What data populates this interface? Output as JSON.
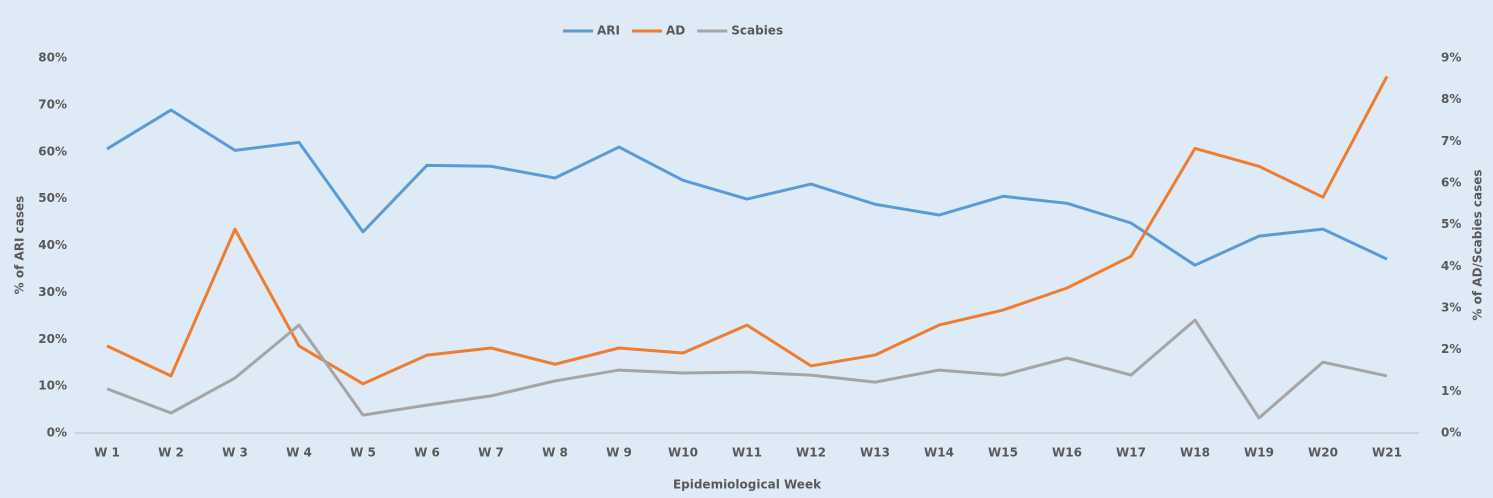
{
  "chart_data": {
    "type": "line",
    "categories": [
      "W 1",
      "W 2",
      "W 3",
      "W 4",
      "W 5",
      "W 6",
      "W 7",
      "W 8",
      "W 9",
      "W10",
      "W11",
      "W12",
      "W13",
      "W14",
      "W15",
      "W16",
      "W17",
      "W18",
      "W19",
      "W20",
      "W21"
    ],
    "series": [
      {
        "name": "ARI",
        "color": "#5b9bd5",
        "values": [
          60.6,
          68.9,
          60.3,
          62.0,
          42.9,
          57.1,
          56.9,
          54.4,
          61.0,
          53.9,
          49.9,
          53.1,
          48.8,
          46.5,
          50.5,
          49.0,
          44.8,
          35.8,
          42.0,
          43.5,
          37.1
        ]
      },
      {
        "name": "AD",
        "color": "#ed7d31",
        "axis": "y2",
        "values": [
          2.09,
          1.37,
          4.89,
          2.09,
          1.18,
          1.87,
          2.04,
          1.65,
          2.04,
          1.92,
          2.59,
          1.61,
          1.87,
          2.59,
          2.95,
          3.48,
          4.24,
          6.83,
          6.4,
          5.66,
          8.56
        ]
      },
      {
        "name": "Scabies",
        "color": "#a5a5a5",
        "axis": "y2",
        "values": [
          1.06,
          0.48,
          1.32,
          2.59,
          0.43,
          0.67,
          0.89,
          1.25,
          1.51,
          1.44,
          1.46,
          1.39,
          1.22,
          1.51,
          1.39,
          1.8,
          1.39,
          2.71,
          0.36,
          1.7,
          1.37
        ]
      }
    ],
    "xlabel": "Epidemiological  Week",
    "ylabel": "% of ARI cases",
    "y2label": "% of AD/Scabies  cases",
    "ylim": [
      0,
      80
    ],
    "yticks": [
      {
        "value": 0,
        "label": "0%"
      },
      {
        "value": 10,
        "label": "10%"
      },
      {
        "value": 20,
        "label": "20%"
      },
      {
        "value": 30,
        "label": "30%"
      },
      {
        "value": 40,
        "label": "40%"
      },
      {
        "value": 50,
        "label": "50%"
      },
      {
        "value": 60,
        "label": "60%"
      },
      {
        "value": 70,
        "label": "70%"
      },
      {
        "value": 80,
        "label": "80%"
      }
    ],
    "y2lim": [
      0,
      9
    ],
    "y2ticks": [
      {
        "value": 0,
        "label": "0%"
      },
      {
        "value": 1,
        "label": "1%"
      },
      {
        "value": 2,
        "label": "2%"
      },
      {
        "value": 3,
        "label": "3%"
      },
      {
        "value": 4,
        "label": "4%"
      },
      {
        "value": 5,
        "label": "5%"
      },
      {
        "value": 6,
        "label": "6%"
      },
      {
        "value": 7,
        "label": "7%"
      },
      {
        "value": 8,
        "label": "8%"
      },
      {
        "value": 9,
        "label": "9%"
      }
    ],
    "grid": false,
    "legend": "top"
  }
}
